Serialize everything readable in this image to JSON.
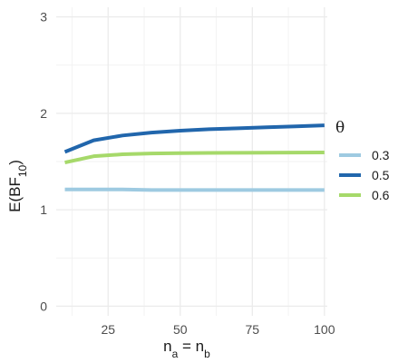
{
  "chart_data": {
    "type": "line",
    "x": [
      10,
      20,
      30,
      40,
      50,
      60,
      70,
      80,
      90,
      100
    ],
    "series": [
      {
        "name": "0.3",
        "color": "#9ecae1",
        "values": [
          1.21,
          1.21,
          1.21,
          1.205,
          1.205,
          1.205,
          1.205,
          1.205,
          1.205,
          1.205
        ]
      },
      {
        "name": "0.5",
        "color": "#2166ac",
        "values": [
          1.6,
          1.72,
          1.77,
          1.8,
          1.82,
          1.835,
          1.845,
          1.855,
          1.865,
          1.875
        ]
      },
      {
        "name": "0.6",
        "color": "#a6d96a",
        "values": [
          1.49,
          1.555,
          1.575,
          1.583,
          1.587,
          1.59,
          1.591,
          1.592,
          1.593,
          1.594
        ]
      }
    ],
    "xlabel": {
      "main": "n",
      "sub_a": "a",
      "equals": " = n",
      "sub_b": "b"
    },
    "ylabel": {
      "main": "E(BF",
      "sub": "10",
      "close": ")"
    },
    "legend_title": "θ",
    "xlim": [
      7,
      101
    ],
    "ylim": [
      -0.1,
      3.1
    ],
    "x_ticks": [
      25,
      50,
      75,
      100
    ],
    "x_tick_labels": [
      "25",
      "50",
      "75",
      "100"
    ],
    "y_ticks": [
      0,
      1,
      2,
      3
    ],
    "y_tick_labels": [
      "0",
      "1",
      "2",
      "3"
    ],
    "grid": true,
    "legend_position": "right"
  }
}
